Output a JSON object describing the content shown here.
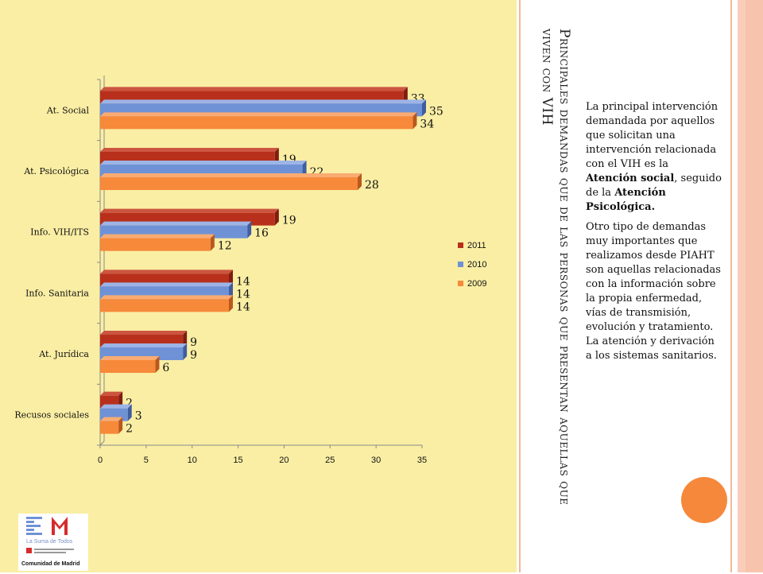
{
  "slide": {
    "title": "Principales demandas que de las personas que presentan aquellas que viven con VIH",
    "paragraph1": {
      "t1": "La principal intervención demandada por aquellos que solicitan una intervención relacionada con el VIH  es la ",
      "b1": "Atención social",
      "t2": ", seguido de la ",
      "b2": "Atención Psicológica."
    },
    "paragraph2": "Otro tipo de demandas muy importantes que realizamos desde PIAHT son aquellas relacionadas con la información sobre la propia enfermedad, vías de transmisión, evolución y tratamiento. La atención y derivación a los sistemas sanitarios."
  },
  "logo": {
    "tagline": "La Suma de Todos",
    "org": "Comunidad de Madrid",
    "small": "CONSEJERÍA DE FAMILIA Y ASUNTOS SOCIALES"
  },
  "colors": {
    "2011": "#b8301c",
    "2010": "#6f92d6",
    "2009": "#f7893a",
    "panel": "#faeea4"
  },
  "chart_data": {
    "type": "bar",
    "orientation": "horizontal",
    "categories": [
      "At. Social",
      "At. Psicológica",
      "Info. VIH/ITS",
      "Info. Sanitaria",
      "At. Jurídica",
      "Recusos sociales"
    ],
    "series": [
      {
        "name": "2011",
        "values": [
          33,
          19,
          19,
          14,
          9,
          2
        ]
      },
      {
        "name": "2010",
        "values": [
          35,
          22,
          16,
          14,
          9,
          3
        ]
      },
      {
        "name": "2009",
        "values": [
          34,
          28,
          12,
          14,
          6,
          2
        ]
      }
    ],
    "xlim": [
      0,
      35
    ],
    "xticks": [
      "0",
      "5",
      "10",
      "15",
      "20",
      "25",
      "30",
      "35"
    ],
    "legend": "right",
    "grid": false
  }
}
